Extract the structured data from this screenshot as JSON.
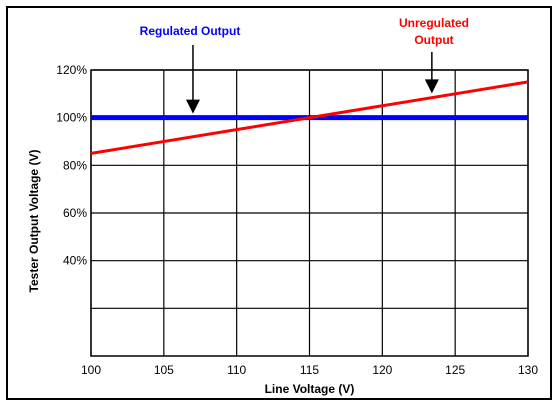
{
  "chart_data": {
    "type": "line",
    "title": "",
    "xlabel": "Line Voltage (V)",
    "ylabel": "Tester Output Voltage (V)",
    "xlim": [
      100,
      130
    ],
    "ylim": [
      0,
      120
    ],
    "x_ticks": [
      100,
      105,
      110,
      115,
      120,
      125,
      130
    ],
    "y_ticks": [
      {
        "value": 0,
        "label": ""
      },
      {
        "value": 20,
        "label": ""
      },
      {
        "value": 40,
        "label": "40%"
      },
      {
        "value": 60,
        "label": "60%"
      },
      {
        "value": 80,
        "label": "80%"
      },
      {
        "value": 100,
        "label": "100%"
      },
      {
        "value": 120,
        "label": "120%"
      }
    ],
    "grid": true,
    "series": [
      {
        "name": "Regulated Output",
        "color": "#0000ff",
        "x": [
          100,
          130
        ],
        "values": [
          100,
          100
        ]
      },
      {
        "name": "Unregulated Output",
        "color": "#ff0000",
        "x": [
          100,
          130
        ],
        "values": [
          85,
          115
        ]
      }
    ],
    "annotations": [
      {
        "text_lines": [
          "Regulated Output"
        ],
        "color": "#0000ff",
        "arrow_to": {
          "x": 107,
          "y": 100
        }
      },
      {
        "text_lines": [
          "Unregulated",
          "Output"
        ],
        "color": "#ff0000",
        "arrow_to": {
          "x": 123.4,
          "y": 108.5
        }
      }
    ]
  }
}
